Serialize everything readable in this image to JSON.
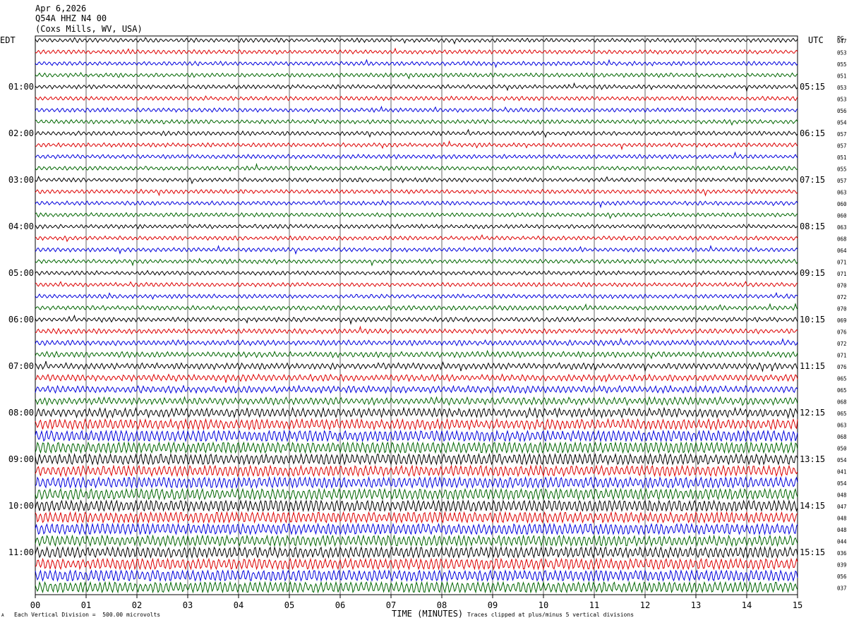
{
  "header": {
    "date": "Apr 6,2026",
    "station": "Q54A HHZ N4 00",
    "location": "(Coxs Mills, WV, USA)"
  },
  "left_tz_label": "EDT",
  "right_tz_label": "UTC",
  "right_col_label": "PG",
  "footer": {
    "scale_note": "Each Vertical Division =  500.00 microvolts",
    "clip_note": "Traces clipped at plus/minus 5 vertical divisions",
    "mark": "A"
  },
  "colors": {
    "trace_cycle": [
      "#000000",
      "#dd0000",
      "#0000dd",
      "#006600"
    ],
    "grid": "#000000"
  },
  "chart_data": {
    "type": "line",
    "title": "Q54A HHZ N4 00",
    "xlabel": "TIME (MINUTES)",
    "xlim": [
      0,
      15
    ],
    "x_ticks": [
      "00",
      "01",
      "02",
      "03",
      "04",
      "05",
      "06",
      "07",
      "08",
      "09",
      "10",
      "11",
      "12",
      "13",
      "14",
      "15"
    ],
    "left_hour_labels": [
      "01:00",
      "02:00",
      "03:00",
      "04:00",
      "05:00",
      "06:00",
      "07:00",
      "08:00",
      "09:00",
      "10:00",
      "11:00"
    ],
    "right_hour_labels": [
      "05:15",
      "06:15",
      "07:15",
      "08:15",
      "09:15",
      "10:15",
      "11:15",
      "12:15",
      "13:15",
      "14:15",
      "15:15"
    ],
    "trace_count": 48,
    "trace_values": [
      "047",
      "053",
      "055",
      "051",
      "053",
      "053",
      "056",
      "054",
      "057",
      "057",
      "051",
      "055",
      "057",
      "063",
      "060",
      "060",
      "063",
      "068",
      "064",
      "071",
      "071",
      "070",
      "072",
      "070",
      "069",
      "076",
      "072",
      "071",
      "076",
      "065",
      "065",
      "068",
      "065",
      "063",
      "068",
      "050",
      "054",
      "041",
      "054",
      "048",
      "047",
      "048",
      "048",
      "044",
      "036",
      "039",
      "056",
      "037"
    ],
    "trace_amplitude_profile": [
      1,
      1,
      1,
      1,
      1,
      1,
      1,
      1,
      1,
      1,
      1,
      1,
      1,
      1,
      1,
      1,
      1,
      1,
      1,
      1,
      1,
      1,
      1,
      1.1,
      1.1,
      1.2,
      1.3,
      1.4,
      1.5,
      1.6,
      1.7,
      1.8,
      2.2,
      2.6,
      3.0,
      3.2,
      3.0,
      2.8,
      3.0,
      3.0,
      3.2,
      3.0,
      3.0,
      2.8,
      3.0,
      3.0,
      3.2,
      3.0
    ]
  }
}
